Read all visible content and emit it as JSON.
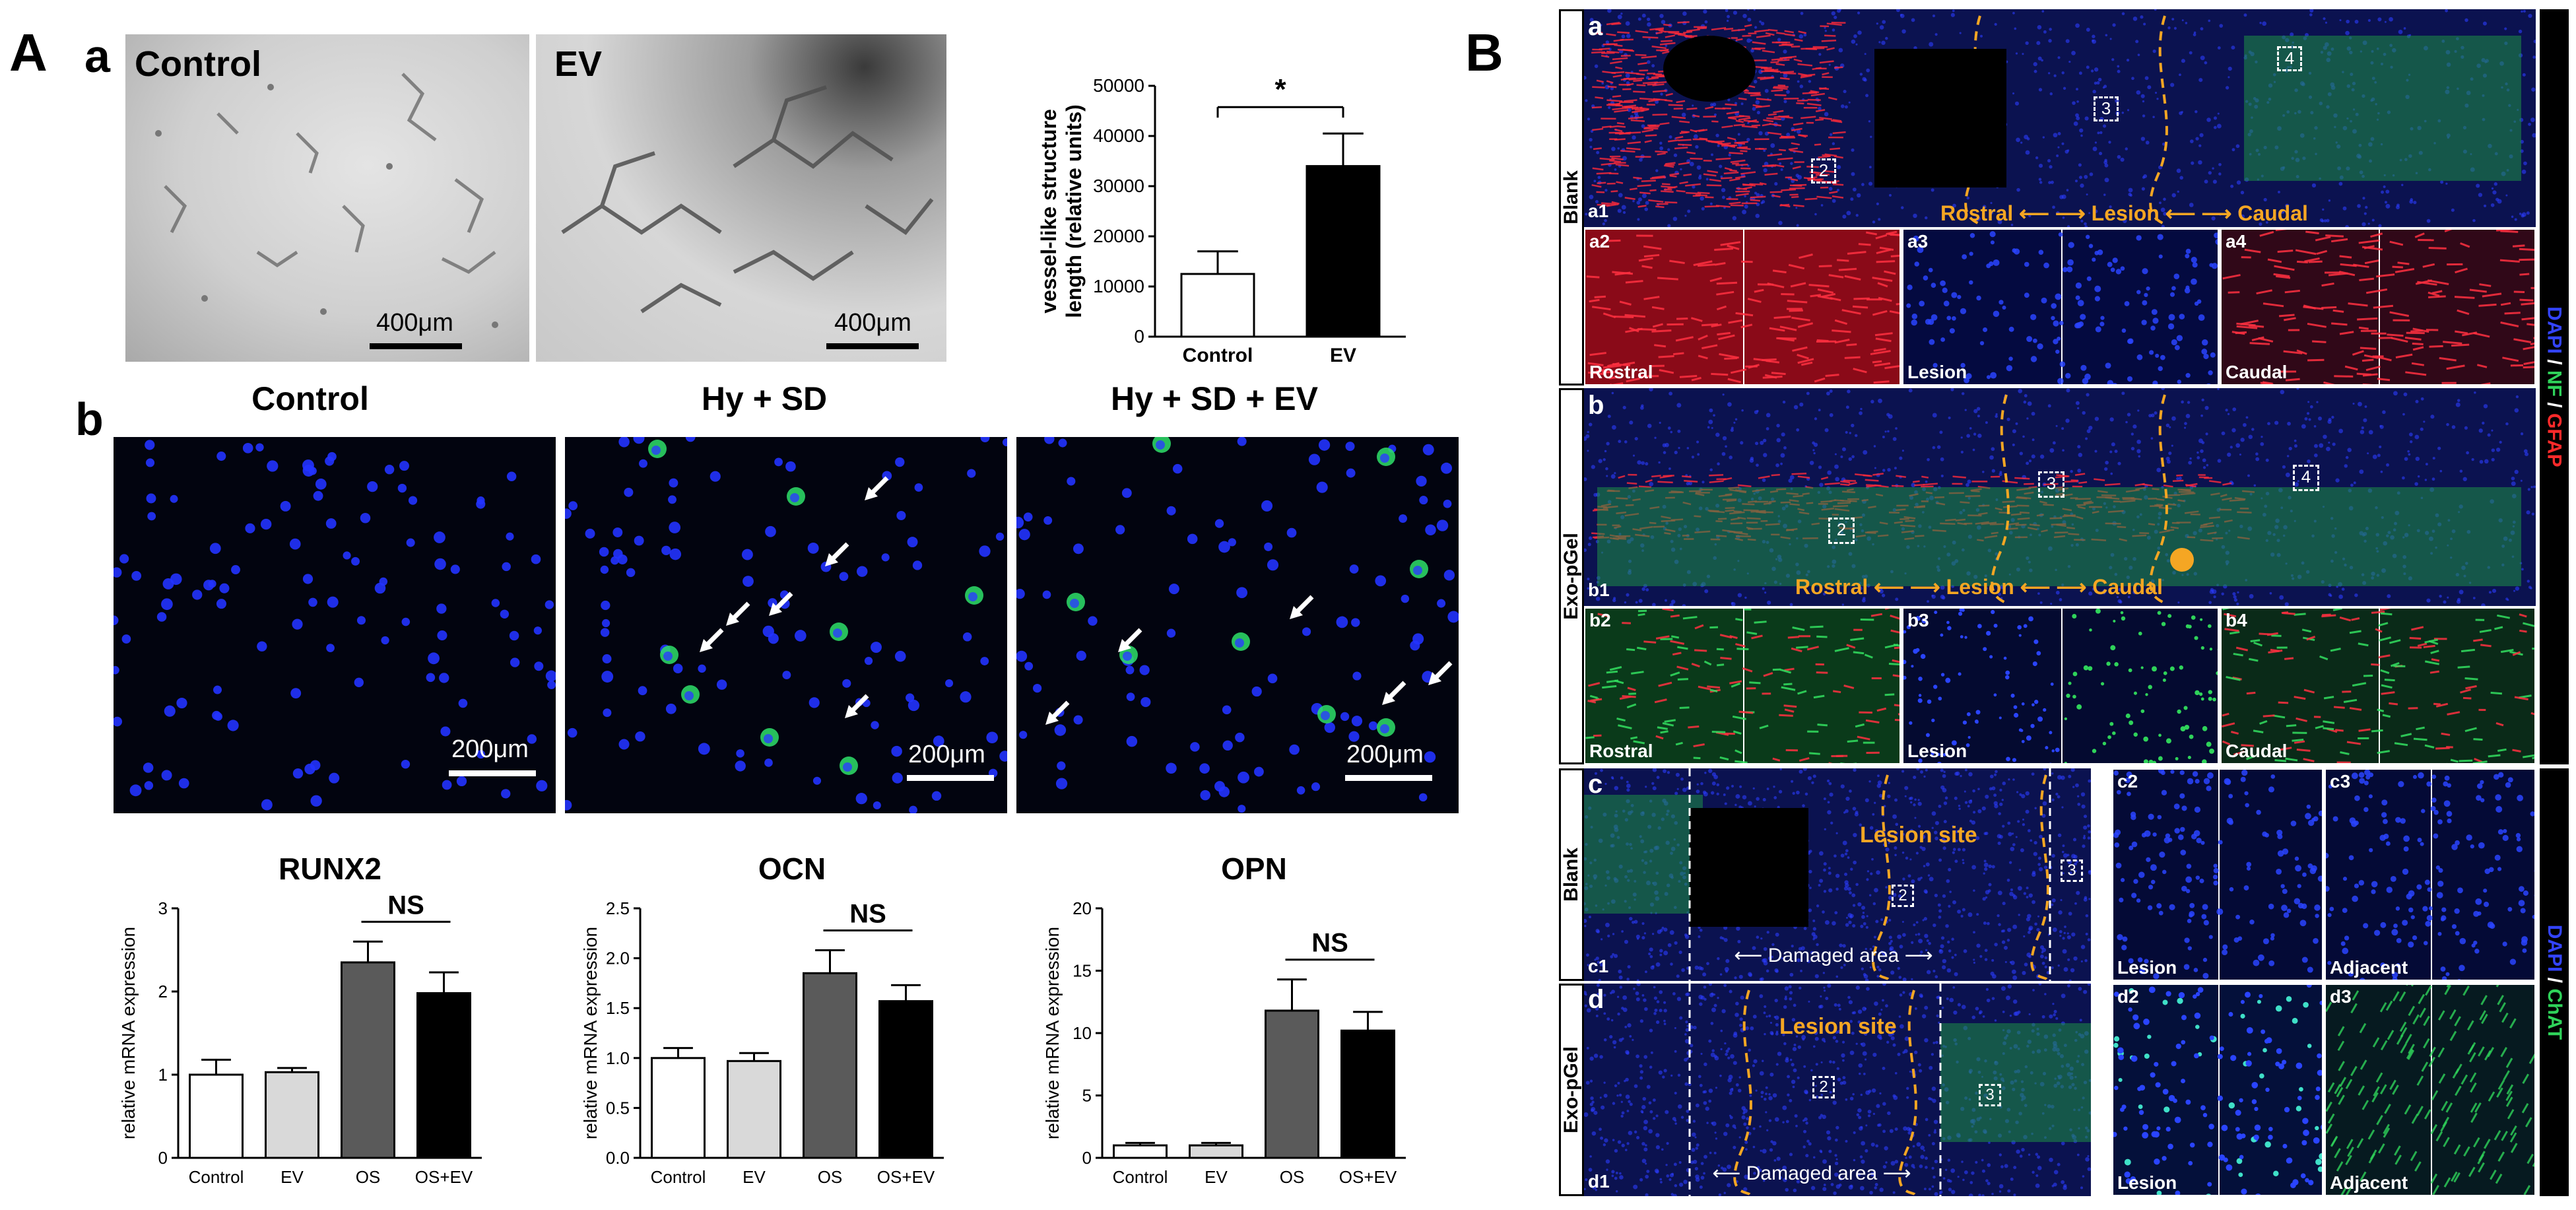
{
  "panel_A": {
    "letter": "A",
    "sub_a": "a",
    "img_control_label": "Control",
    "img_ev_label": "EV",
    "scale_400": "400μm"
  },
  "panel_A_sub_b": "b",
  "panel_B_letter": "B",
  "fluor_titles": [
    "Control",
    "Hy + SD",
    "Hy + SD + EV"
  ],
  "scale_200": "200μm",
  "colors": {
    "dapi": "#1f2cff",
    "green": "#2fd35a",
    "red": "#ff2a2a",
    "orange": "#f5a623",
    "bar_light": "#d9d9d9",
    "bar_dark": "#5a5a5a"
  },
  "chart_data": [
    {
      "type": "bar",
      "categories": [
        "Control",
        "EV"
      ],
      "values": [
        12500,
        34000
      ],
      "errors": [
        4500,
        6500
      ],
      "ylabel_line1": "vessel-like structure",
      "ylabel_line2": "length (relative units)",
      "ylim": [
        0,
        50000
      ],
      "yticks": [
        "0",
        "10000",
        "20000",
        "30000",
        "40000",
        "50000"
      ],
      "significance": "*"
    },
    {
      "type": "bar",
      "title": "RUNX2",
      "categories": [
        "Control",
        "EV",
        "OS",
        "OS+EV"
      ],
      "values": [
        1.0,
        1.03,
        2.35,
        1.98
      ],
      "errors": [
        0.18,
        0.05,
        0.25,
        0.25
      ],
      "ylabel": "relative mRNA expression",
      "ylim": [
        0,
        3
      ],
      "yticks": [
        "0",
        "1",
        "2",
        "3"
      ],
      "significance": "NS"
    },
    {
      "type": "bar",
      "title": "OCN",
      "categories": [
        "Control",
        "EV",
        "OS",
        "OS+EV"
      ],
      "values": [
        1.0,
        0.97,
        1.85,
        1.57
      ],
      "errors": [
        0.1,
        0.08,
        0.23,
        0.16
      ],
      "ylabel": "relative mRNA expression",
      "ylim": [
        0,
        2.5
      ],
      "yticks": [
        "0.0",
        "0.5",
        "1.0",
        "1.5",
        "2.0",
        "2.5"
      ],
      "significance": "NS"
    },
    {
      "type": "bar",
      "title": "OPN",
      "categories": [
        "Control",
        "EV",
        "OS",
        "OS+EV"
      ],
      "values": [
        1.0,
        1.0,
        11.8,
        10.2
      ],
      "errors": [
        0.2,
        0.2,
        2.5,
        1.5
      ],
      "ylabel": "relative mRNA expression",
      "ylim": [
        0,
        20
      ],
      "yticks": [
        "0",
        "5",
        "10",
        "15",
        "20"
      ],
      "significance": "NS"
    }
  ],
  "panel_B": {
    "row_a": {
      "letter": "a",
      "side": "Blank",
      "main_tag": "a1",
      "boxes": [
        "2",
        "3",
        "4"
      ],
      "arrow_text": [
        "Rostral",
        "Lesion",
        "Caudal"
      ],
      "tiles": [
        {
          "tag": "a2",
          "label": "Rostral"
        },
        {
          "tag": "a3",
          "label": "Lesion"
        },
        {
          "tag": "a4",
          "label": "Caudal"
        }
      ]
    },
    "row_b": {
      "letter": "b",
      "side": "Exo-pGel",
      "main_tag": "b1",
      "boxes": [
        "2",
        "3",
        "4"
      ],
      "arrow_text": [
        "Rostral",
        "Lesion",
        "Caudal"
      ],
      "tiles": [
        {
          "tag": "b2",
          "label": "Rostral"
        },
        {
          "tag": "b3",
          "label": "Lesion"
        },
        {
          "tag": "b4",
          "label": "Caudal"
        }
      ]
    },
    "row_c": {
      "letter": "c",
      "side": "Blank",
      "main_tag": "c1",
      "lesion_site": "Lesion site",
      "damaged": "Damaged area",
      "boxes": [
        "2",
        "3"
      ],
      "tiles": [
        {
          "tag": "c2",
          "label": "Lesion"
        },
        {
          "tag": "c3",
          "label": "Adjacent"
        }
      ]
    },
    "row_d": {
      "letter": "d",
      "side": "Exo-pGel",
      "main_tag": "d1",
      "lesion_site": "Lesion site",
      "damaged": "Damaged area",
      "boxes": [
        "2",
        "3"
      ],
      "tiles": [
        {
          "tag": "d2",
          "label": "Lesion"
        },
        {
          "tag": "d3",
          "label": "Adjacent"
        }
      ]
    },
    "ribbon_top": [
      "DAPI",
      " / ",
      "NF",
      " / ",
      "GFAP"
    ],
    "ribbon_bottom": [
      "DAPI",
      " / ",
      "ChAT"
    ]
  }
}
